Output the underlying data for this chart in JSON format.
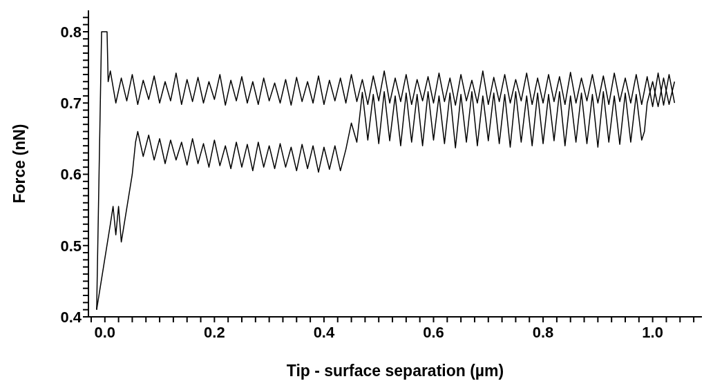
{
  "chart_data": {
    "type": "line",
    "xlabel": "Tip - surface separation (µm)",
    "ylabel": "Force (nN)",
    "xlim": [
      -0.03,
      1.09
    ],
    "ylim": [
      0.4,
      0.83
    ],
    "xticks": [
      {
        "value": -0.025,
        "label": null
      },
      {
        "value": 0,
        "label": "0.0"
      },
      {
        "value": 0.025,
        "label": null
      },
      {
        "value": 0.05,
        "label": null
      },
      {
        "value": 0.075,
        "label": null
      },
      {
        "value": 0.1,
        "label": null
      },
      {
        "value": 0.125,
        "label": null
      },
      {
        "value": 0.15,
        "label": null
      },
      {
        "value": 0.175,
        "label": null
      },
      {
        "value": 0.2,
        "label": "0.2"
      },
      {
        "value": 0.225,
        "label": null
      },
      {
        "value": 0.25,
        "label": null
      },
      {
        "value": 0.275,
        "label": null
      },
      {
        "value": 0.3,
        "label": null
      },
      {
        "value": 0.325,
        "label": null
      },
      {
        "value": 0.35,
        "label": null
      },
      {
        "value": 0.375,
        "label": null
      },
      {
        "value": 0.4,
        "label": "0.4"
      },
      {
        "value": 0.425,
        "label": null
      },
      {
        "value": 0.45,
        "label": null
      },
      {
        "value": 0.475,
        "label": null
      },
      {
        "value": 0.5,
        "label": null
      },
      {
        "value": 0.525,
        "label": null
      },
      {
        "value": 0.55,
        "label": null
      },
      {
        "value": 0.575,
        "label": null
      },
      {
        "value": 0.6,
        "label": "0.6"
      },
      {
        "value": 0.625,
        "label": null
      },
      {
        "value": 0.65,
        "label": null
      },
      {
        "value": 0.675,
        "label": null
      },
      {
        "value": 0.7,
        "label": null
      },
      {
        "value": 0.725,
        "label": null
      },
      {
        "value": 0.75,
        "label": null
      },
      {
        "value": 0.775,
        "label": null
      },
      {
        "value": 0.8,
        "label": "0.8"
      },
      {
        "value": 0.825,
        "label": null
      },
      {
        "value": 0.85,
        "label": null
      },
      {
        "value": 0.875,
        "label": null
      },
      {
        "value": 0.9,
        "label": null
      },
      {
        "value": 0.925,
        "label": null
      },
      {
        "value": 0.95,
        "label": null
      },
      {
        "value": 0.975,
        "label": null
      },
      {
        "value": 1.0,
        "label": "1.0"
      },
      {
        "value": 1.025,
        "label": null
      },
      {
        "value": 1.05,
        "label": null
      },
      {
        "value": 1.075,
        "label": null
      }
    ],
    "yticks": [
      0.4,
      {
        "value": 0.41,
        "label": null
      },
      {
        "value": 0.42,
        "label": null
      },
      {
        "value": 0.43,
        "label": null
      },
      {
        "value": 0.44,
        "label": null
      },
      {
        "value": 0.45,
        "label": null
      },
      {
        "value": 0.46,
        "label": null
      },
      {
        "value": 0.47,
        "label": null
      },
      {
        "value": 0.48,
        "label": null
      },
      {
        "value": 0.49,
        "label": null
      },
      0.5,
      {
        "value": 0.51,
        "label": null
      },
      {
        "value": 0.52,
        "label": null
      },
      {
        "value": 0.53,
        "label": null
      },
      {
        "value": 0.54,
        "label": null
      },
      {
        "value": 0.55,
        "label": null
      },
      {
        "value": 0.56,
        "label": null
      },
      {
        "value": 0.57,
        "label": null
      },
      {
        "value": 0.58,
        "label": null
      },
      {
        "value": 0.59,
        "label": null
      },
      0.6,
      {
        "value": 0.61,
        "label": null
      },
      {
        "value": 0.62,
        "label": null
      },
      {
        "value": 0.63,
        "label": null
      },
      {
        "value": 0.64,
        "label": null
      },
      {
        "value": 0.65,
        "label": null
      },
      {
        "value": 0.66,
        "label": null
      },
      {
        "value": 0.67,
        "label": null
      },
      {
        "value": 0.68,
        "label": null
      },
      {
        "value": 0.69,
        "label": null
      },
      0.7,
      {
        "value": 0.71,
        "label": null
      },
      {
        "value": 0.72,
        "label": null
      },
      {
        "value": 0.73,
        "label": null
      },
      {
        "value": 0.74,
        "label": null
      },
      {
        "value": 0.75,
        "label": null
      },
      {
        "value": 0.76,
        "label": null
      },
      {
        "value": 0.77,
        "label": null
      },
      {
        "value": 0.78,
        "label": null
      },
      {
        "value": 0.79,
        "label": null
      },
      0.8,
      {
        "value": 0.81,
        "label": null
      },
      {
        "value": 0.82,
        "label": null
      }
    ],
    "marker": "none",
    "line_style": "solid",
    "series": [
      {
        "color": "#000000",
        "x": [
          -0.015,
          -0.006,
          0.004,
          0.006,
          0.01,
          0.02,
          0.03,
          0.04,
          0.05,
          0.06,
          0.07,
          0.08,
          0.09,
          0.1,
          0.11,
          0.12,
          0.13,
          0.14,
          0.15,
          0.16,
          0.17,
          0.18,
          0.19,
          0.2,
          0.21,
          0.22,
          0.23,
          0.24,
          0.25,
          0.26,
          0.27,
          0.28,
          0.29,
          0.3,
          0.31,
          0.32,
          0.33,
          0.34,
          0.35,
          0.36,
          0.37,
          0.38,
          0.39,
          0.4,
          0.41,
          0.42,
          0.43,
          0.44,
          0.45,
          0.46,
          0.47,
          0.48,
          0.49,
          0.5,
          0.51,
          0.52,
          0.53,
          0.54,
          0.55,
          0.56,
          0.57,
          0.58,
          0.59,
          0.6,
          0.61,
          0.62,
          0.63,
          0.64,
          0.65,
          0.66,
          0.67,
          0.68,
          0.69,
          0.7,
          0.71,
          0.72,
          0.73,
          0.74,
          0.75,
          0.76,
          0.77,
          0.78,
          0.79,
          0.8,
          0.81,
          0.82,
          0.83,
          0.84,
          0.85,
          0.86,
          0.87,
          0.88,
          0.89,
          0.9,
          0.91,
          0.92,
          0.93,
          0.94,
          0.95,
          0.96,
          0.97,
          0.98,
          0.99,
          1.0,
          1.01,
          1.02,
          1.03,
          1.04
        ],
        "values": [
          0.41,
          0.8,
          0.8,
          0.73,
          0.745,
          0.7,
          0.735,
          0.703,
          0.74,
          0.698,
          0.732,
          0.705,
          0.738,
          0.7,
          0.73,
          0.703,
          0.742,
          0.698,
          0.733,
          0.702,
          0.736,
          0.7,
          0.73,
          0.705,
          0.74,
          0.697,
          0.732,
          0.703,
          0.737,
          0.7,
          0.73,
          0.698,
          0.735,
          0.703,
          0.728,
          0.7,
          0.733,
          0.697,
          0.736,
          0.702,
          0.73,
          0.7,
          0.738,
          0.698,
          0.732,
          0.703,
          0.735,
          0.7,
          0.74,
          0.702,
          0.733,
          0.698,
          0.738,
          0.703,
          0.745,
          0.7,
          0.735,
          0.702,
          0.74,
          0.698,
          0.733,
          0.703,
          0.737,
          0.7,
          0.742,
          0.702,
          0.735,
          0.697,
          0.74,
          0.703,
          0.732,
          0.7,
          0.745,
          0.698,
          0.736,
          0.702,
          0.74,
          0.7,
          0.733,
          0.703,
          0.742,
          0.698,
          0.735,
          0.7,
          0.74,
          0.702,
          0.737,
          0.698,
          0.743,
          0.7,
          0.735,
          0.703,
          0.74,
          0.7,
          0.738,
          0.698,
          0.742,
          0.702,
          0.735,
          0.7,
          0.74,
          0.698,
          0.737,
          0.695,
          0.742,
          0.697,
          0.74,
          0.7
        ]
      },
      {
        "color": "#000000",
        "x": [
          -0.015,
          0.01,
          0.015,
          0.02,
          0.025,
          0.03,
          0.05,
          0.056,
          0.06,
          0.07,
          0.08,
          0.09,
          0.1,
          0.11,
          0.12,
          0.13,
          0.14,
          0.15,
          0.16,
          0.17,
          0.18,
          0.19,
          0.2,
          0.21,
          0.22,
          0.23,
          0.24,
          0.25,
          0.26,
          0.27,
          0.28,
          0.29,
          0.3,
          0.31,
          0.32,
          0.33,
          0.34,
          0.35,
          0.36,
          0.37,
          0.38,
          0.39,
          0.4,
          0.41,
          0.42,
          0.43,
          0.44,
          0.45,
          0.46,
          0.47,
          0.48,
          0.49,
          0.5,
          0.51,
          0.52,
          0.53,
          0.54,
          0.55,
          0.56,
          0.57,
          0.58,
          0.59,
          0.6,
          0.61,
          0.62,
          0.63,
          0.64,
          0.65,
          0.66,
          0.67,
          0.68,
          0.69,
          0.7,
          0.71,
          0.72,
          0.73,
          0.74,
          0.75,
          0.76,
          0.77,
          0.78,
          0.79,
          0.8,
          0.81,
          0.82,
          0.83,
          0.84,
          0.85,
          0.86,
          0.87,
          0.88,
          0.89,
          0.9,
          0.91,
          0.92,
          0.93,
          0.94,
          0.95,
          0.96,
          0.97,
          0.98,
          0.985,
          0.99,
          1.0,
          1.01,
          1.02,
          1.03,
          1.04
        ],
        "values": [
          0.41,
          0.53,
          0.555,
          0.515,
          0.555,
          0.505,
          0.6,
          0.645,
          0.66,
          0.625,
          0.655,
          0.62,
          0.65,
          0.615,
          0.648,
          0.62,
          0.645,
          0.613,
          0.65,
          0.615,
          0.643,
          0.61,
          0.648,
          0.612,
          0.64,
          0.608,
          0.645,
          0.61,
          0.642,
          0.605,
          0.645,
          0.61,
          0.64,
          0.608,
          0.643,
          0.61,
          0.638,
          0.605,
          0.642,
          0.608,
          0.64,
          0.603,
          0.638,
          0.607,
          0.64,
          0.605,
          0.635,
          0.672,
          0.645,
          0.715,
          0.648,
          0.712,
          0.643,
          0.716,
          0.647,
          0.71,
          0.64,
          0.714,
          0.645,
          0.712,
          0.64,
          0.716,
          0.648,
          0.71,
          0.643,
          0.714,
          0.637,
          0.712,
          0.645,
          0.716,
          0.64,
          0.71,
          0.647,
          0.714,
          0.643,
          0.712,
          0.638,
          0.716,
          0.645,
          0.71,
          0.64,
          0.714,
          0.643,
          0.712,
          0.647,
          0.716,
          0.64,
          0.71,
          0.645,
          0.714,
          0.643,
          0.712,
          0.638,
          0.716,
          0.645,
          0.71,
          0.642,
          0.714,
          0.645,
          0.712,
          0.648,
          0.66,
          0.7,
          0.73,
          0.695,
          0.735,
          0.698,
          0.73
        ]
      }
    ]
  }
}
